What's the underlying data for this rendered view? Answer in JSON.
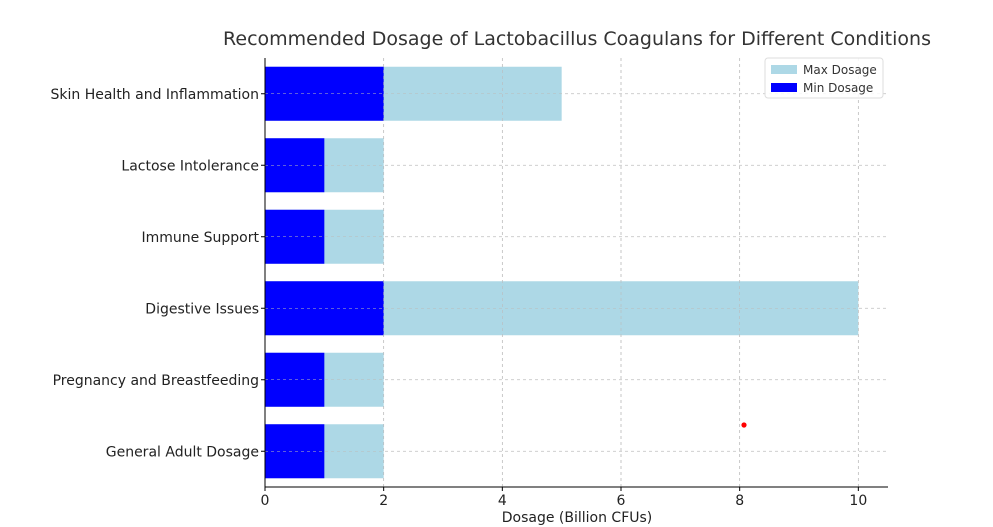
{
  "chart_data": {
    "type": "bar",
    "orientation": "horizontal",
    "stacked_overlay": true,
    "title": "Recommended Dosage of Lactobacillus Coagulans for Different Conditions",
    "xlabel": "Dosage (Billion CFUs)",
    "ylabel": "",
    "xlim": [
      0,
      10.5
    ],
    "xticks": [
      0,
      2,
      4,
      6,
      8,
      10
    ],
    "grid": true,
    "legend_position": "top-right",
    "categories": [
      "General Adult Dosage",
      "Pregnancy and Breastfeeding",
      "Digestive Issues",
      "Immune Support",
      "Lactose Intolerance",
      "Skin Health and Inflammation"
    ],
    "series": [
      {
        "name": "Max Dosage",
        "color": "#add8e6",
        "values": [
          2,
          2,
          10,
          2,
          2,
          5
        ]
      },
      {
        "name": "Min Dosage",
        "color": "#0000ff",
        "values": [
          1,
          1,
          2,
          1,
          1,
          2
        ]
      }
    ],
    "marker_color": "#ff0000"
  }
}
